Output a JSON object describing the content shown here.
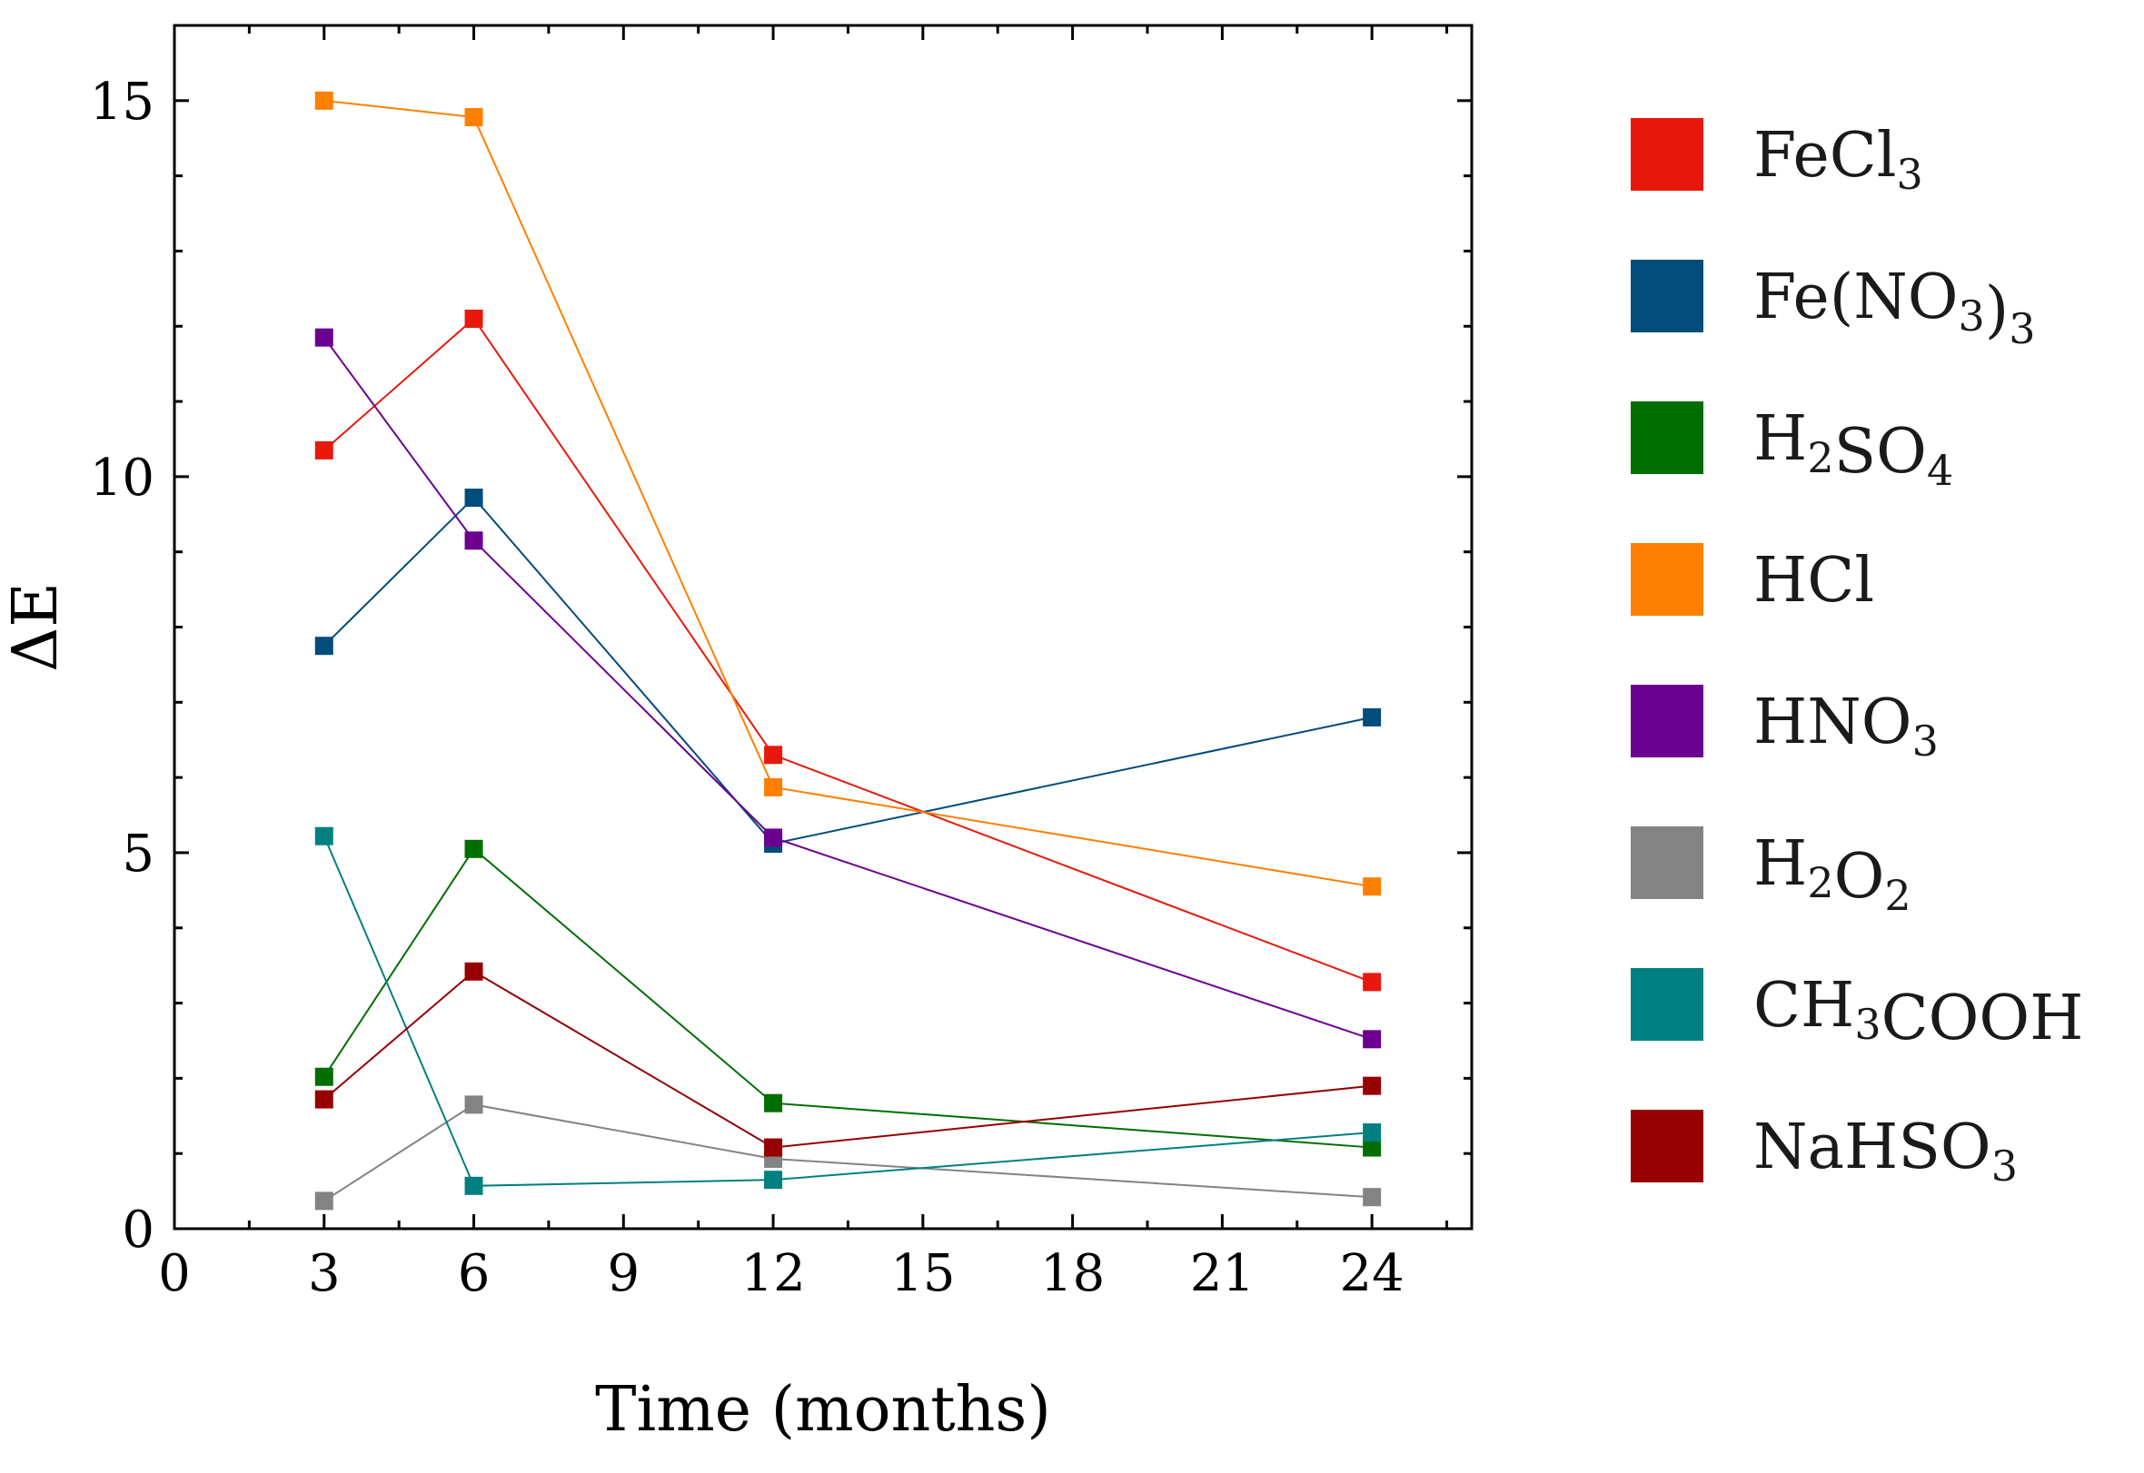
{
  "chart_data": {
    "type": "line",
    "xlabel": "Time (months)",
    "ylabel": "ΔE",
    "xlim": [
      0,
      26
    ],
    "ylim": [
      0,
      16
    ],
    "xticks": [
      "0",
      "3",
      "6",
      "9",
      "12",
      "15",
      "18",
      "21",
      "24"
    ],
    "yticks": [
      "0",
      "5",
      "10",
      "15"
    ],
    "grid": false,
    "legend_position": "right",
    "x": [
      3,
      6,
      12,
      24
    ],
    "series": [
      {
        "key": "fecl3",
        "base": "FeCl",
        "sub1": "3",
        "mid": "",
        "sub2": "",
        "tail": "",
        "color": "#e8190c",
        "values": [
          10.35,
          12.1,
          6.3,
          3.28
        ]
      },
      {
        "key": "feno33",
        "base": "Fe(NO",
        "sub1": "3",
        "mid": ")",
        "sub2": "3",
        "tail": "",
        "color": "#004c7b",
        "values": [
          7.75,
          9.72,
          5.12,
          6.8
        ]
      },
      {
        "key": "h2so4",
        "base": "H",
        "sub1": "2",
        "mid": "SO",
        "sub2": "4",
        "tail": "",
        "color": "#006e00",
        "values": [
          2.02,
          5.05,
          1.67,
          1.08
        ]
      },
      {
        "key": "hcl",
        "base": "HCl",
        "sub1": "",
        "mid": "",
        "sub2": "",
        "tail": "",
        "color": "#ff7f00",
        "values": [
          15.0,
          14.78,
          5.87,
          4.55
        ]
      },
      {
        "key": "hno3",
        "base": "HNO",
        "sub1": "3",
        "mid": "",
        "sub2": "",
        "tail": "",
        "color": "#6c0090",
        "values": [
          11.85,
          9.15,
          5.2,
          2.52
        ]
      },
      {
        "key": "h2o2",
        "base": "H",
        "sub1": "2",
        "mid": "O",
        "sub2": "2",
        "tail": "",
        "color": "#838383",
        "values": [
          0.37,
          1.65,
          0.93,
          0.42
        ]
      },
      {
        "key": "ch3cooh",
        "base": "CH",
        "sub1": "3",
        "mid": "COOH",
        "sub2": "",
        "tail": "",
        "color": "#008080",
        "values": [
          5.22,
          0.57,
          0.65,
          1.28
        ]
      },
      {
        "key": "nahso3",
        "base": "NaHSO",
        "sub1": "3",
        "mid": "",
        "sub2": "",
        "tail": "",
        "color": "#960000",
        "values": [
          1.72,
          3.42,
          1.08,
          1.9
        ]
      }
    ]
  }
}
